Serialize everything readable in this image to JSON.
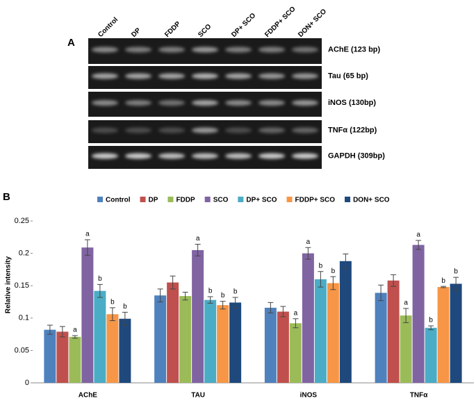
{
  "gel": {
    "panel_label": "A",
    "lanes": [
      "Control",
      "DP",
      "FDDP",
      "SCO",
      "DP+ SCO",
      "FDDP+ SCO",
      "DON+ SCO"
    ],
    "bands": [
      "AChE (123 bp)",
      "Tau (65 bp)",
      "iNOS (130bp)",
      "TNFα (122bp)",
      "GAPDH (309bp)"
    ]
  },
  "chart_data": {
    "type": "bar",
    "panel_label": "B",
    "y_label": "Relative intensity",
    "categories": [
      "AChE",
      "TAU",
      "iNOS",
      "TNFα"
    ],
    "ylim": [
      0,
      0.25
    ],
    "yticks": [
      0,
      0.05,
      0.1,
      0.15,
      0.2,
      0.25
    ],
    "grid": false,
    "legend": "top",
    "series": [
      {
        "name": "Control",
        "color": "#4f81bd",
        "values": [
          0.082,
          0.135,
          0.116,
          0.139
        ],
        "errors": [
          0.007,
          0.01,
          0.008,
          0.012
        ],
        "annotations": [
          null,
          null,
          null,
          null
        ]
      },
      {
        "name": "DP",
        "color": "#c0504d",
        "values": [
          0.079,
          0.155,
          0.11,
          0.158
        ],
        "errors": [
          0.008,
          0.01,
          0.008,
          0.009
        ],
        "annotations": [
          null,
          null,
          null,
          null
        ]
      },
      {
        "name": "FDDP",
        "color": "#9bbb59",
        "values": [
          0.071,
          0.134,
          0.092,
          0.104
        ],
        "errors": [
          0.002,
          0.006,
          0.007,
          0.011
        ],
        "annotations": [
          "a",
          null,
          "a",
          "a"
        ]
      },
      {
        "name": "SCO",
        "color": "#8064a2",
        "values": [
          0.209,
          0.205,
          0.2,
          0.213
        ],
        "errors": [
          0.012,
          0.009,
          0.009,
          0.007
        ],
        "annotations": [
          "a",
          "a",
          "a",
          "a"
        ]
      },
      {
        "name": "DP+ SCO",
        "color": "#4bacc6",
        "values": [
          0.142,
          0.128,
          0.16,
          0.085
        ],
        "errors": [
          0.01,
          0.005,
          0.012,
          0.003
        ],
        "annotations": [
          "b",
          "b",
          "b",
          "b"
        ]
      },
      {
        "name": "FDDP+ SCO",
        "color": "#f79646",
        "values": [
          0.106,
          0.12,
          0.154,
          0.148
        ],
        "errors": [
          0.01,
          0.006,
          0.01,
          0.001
        ],
        "annotations": [
          "b",
          "b",
          "b",
          "b"
        ]
      },
      {
        "name": "DON+ SCO",
        "color": "#1f497d",
        "values": [
          0.099,
          0.124,
          0.188,
          0.153
        ],
        "errors": [
          0.01,
          0.008,
          0.011,
          0.01
        ],
        "annotations": [
          "b",
          "b",
          null,
          "b"
        ]
      }
    ]
  }
}
